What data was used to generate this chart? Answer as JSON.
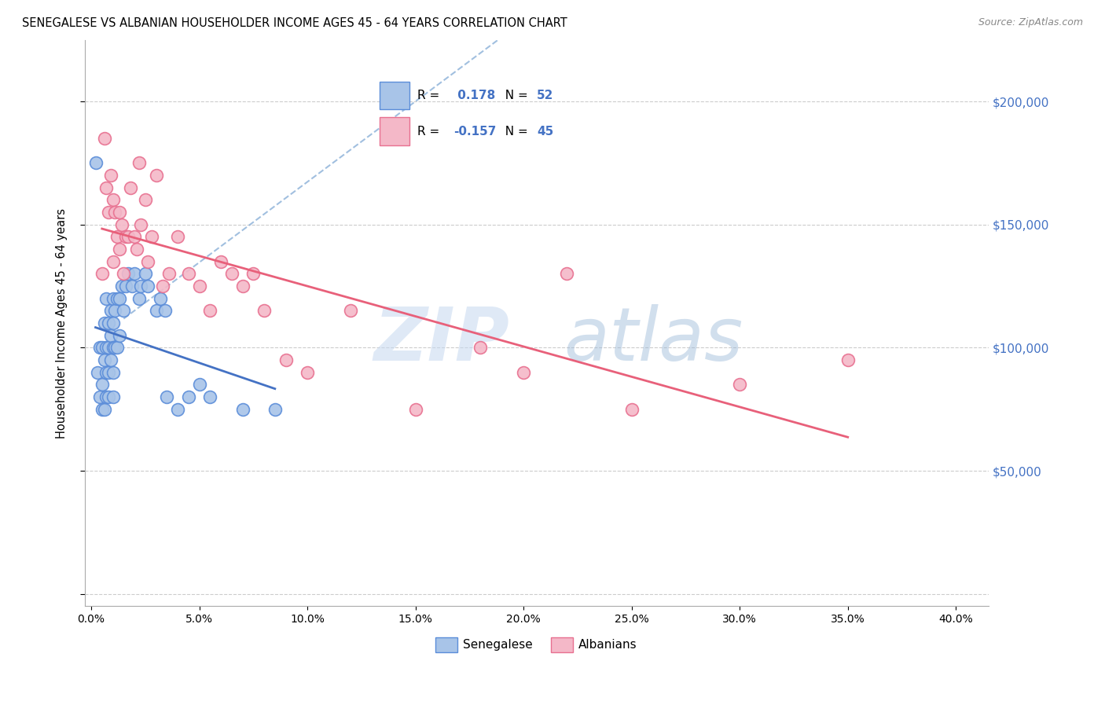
{
  "title": "SENEGALESE VS ALBANIAN HOUSEHOLDER INCOME AGES 45 - 64 YEARS CORRELATION CHART",
  "source": "Source: ZipAtlas.com",
  "xlabel_vals": [
    0.0,
    5.0,
    10.0,
    15.0,
    20.0,
    25.0,
    30.0,
    35.0,
    40.0
  ],
  "ylabel_ticks": [
    0,
    50000,
    100000,
    150000,
    200000
  ],
  "ylabel_labels": [
    "",
    "$50,000",
    "$100,000",
    "$150,000",
    "$200,000"
  ],
  "ylim": [
    -5000,
    225000
  ],
  "xlim": [
    -0.3,
    41.5
  ],
  "ylabel": "Householder Income Ages 45 - 64 years",
  "senegalese_color": "#a8c4e8",
  "albanian_color": "#f4b8c8",
  "senegalese_edge_color": "#5b8dd9",
  "albanian_edge_color": "#e87090",
  "senegalese_line_color": "#4472c4",
  "albanian_line_color": "#e8607a",
  "dashed_line_color": "#8ab0d8",
  "R_senegalese": 0.178,
  "N_senegalese": 52,
  "R_albanian": -0.157,
  "N_albanian": 45,
  "senegalese_x": [
    0.2,
    0.3,
    0.4,
    0.4,
    0.5,
    0.5,
    0.5,
    0.6,
    0.6,
    0.6,
    0.7,
    0.7,
    0.7,
    0.7,
    0.8,
    0.8,
    0.8,
    0.8,
    0.9,
    0.9,
    0.9,
    1.0,
    1.0,
    1.0,
    1.0,
    1.0,
    1.1,
    1.1,
    1.2,
    1.2,
    1.3,
    1.3,
    1.4,
    1.5,
    1.6,
    1.7,
    1.9,
    2.0,
    2.2,
    2.3,
    2.5,
    2.6,
    3.0,
    3.2,
    3.4,
    3.5,
    4.0,
    4.5,
    5.0,
    5.5,
    7.0,
    8.5
  ],
  "senegalese_y": [
    175000,
    90000,
    100000,
    80000,
    85000,
    100000,
    75000,
    110000,
    95000,
    75000,
    120000,
    100000,
    90000,
    80000,
    110000,
    100000,
    90000,
    80000,
    115000,
    105000,
    95000,
    120000,
    110000,
    100000,
    90000,
    80000,
    115000,
    100000,
    120000,
    100000,
    120000,
    105000,
    125000,
    115000,
    125000,
    130000,
    125000,
    130000,
    120000,
    125000,
    130000,
    125000,
    115000,
    120000,
    115000,
    80000,
    75000,
    80000,
    85000,
    80000,
    75000,
    75000
  ],
  "albanian_x": [
    0.5,
    0.6,
    0.7,
    0.8,
    0.9,
    1.0,
    1.0,
    1.1,
    1.2,
    1.3,
    1.3,
    1.4,
    1.5,
    1.6,
    1.7,
    1.8,
    2.0,
    2.1,
    2.2,
    2.3,
    2.5,
    2.6,
    2.8,
    3.0,
    3.3,
    3.6,
    4.0,
    4.5,
    5.0,
    5.5,
    6.0,
    6.5,
    7.0,
    7.5,
    8.0,
    9.0,
    10.0,
    12.0,
    15.0,
    18.0,
    20.0,
    22.0,
    25.0,
    30.0,
    35.0
  ],
  "albanian_y": [
    130000,
    185000,
    165000,
    155000,
    170000,
    160000,
    135000,
    155000,
    145000,
    140000,
    155000,
    150000,
    130000,
    145000,
    145000,
    165000,
    145000,
    140000,
    175000,
    150000,
    160000,
    135000,
    145000,
    170000,
    125000,
    130000,
    145000,
    130000,
    125000,
    115000,
    135000,
    130000,
    125000,
    130000,
    115000,
    95000,
    90000,
    115000,
    75000,
    100000,
    90000,
    130000,
    75000,
    85000,
    95000
  ]
}
